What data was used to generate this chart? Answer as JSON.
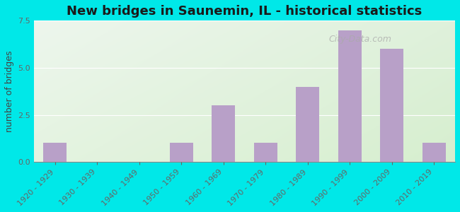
{
  "title": "New bridges in Saunemin, IL - historical statistics",
  "ylabel": "number of bridges",
  "categories": [
    "1920 - 1929",
    "1930 - 1939",
    "1940 - 1949",
    "1950 - 1959",
    "1960 - 1969",
    "1970 - 1979",
    "1980 - 1989",
    "1990 - 1999",
    "2000 - 2009",
    "2010 - 2019"
  ],
  "values": [
    1,
    0,
    0,
    1,
    3,
    1,
    4,
    7,
    6,
    1
  ],
  "bar_color": "#b8a0c8",
  "ylim": [
    0,
    7.5
  ],
  "yticks": [
    0,
    2.5,
    5,
    7.5
  ],
  "background_outer": "#00e8e8",
  "watermark": "City-Data.com",
  "title_fontsize": 13,
  "ylabel_fontsize": 9,
  "tick_fontsize": 8
}
